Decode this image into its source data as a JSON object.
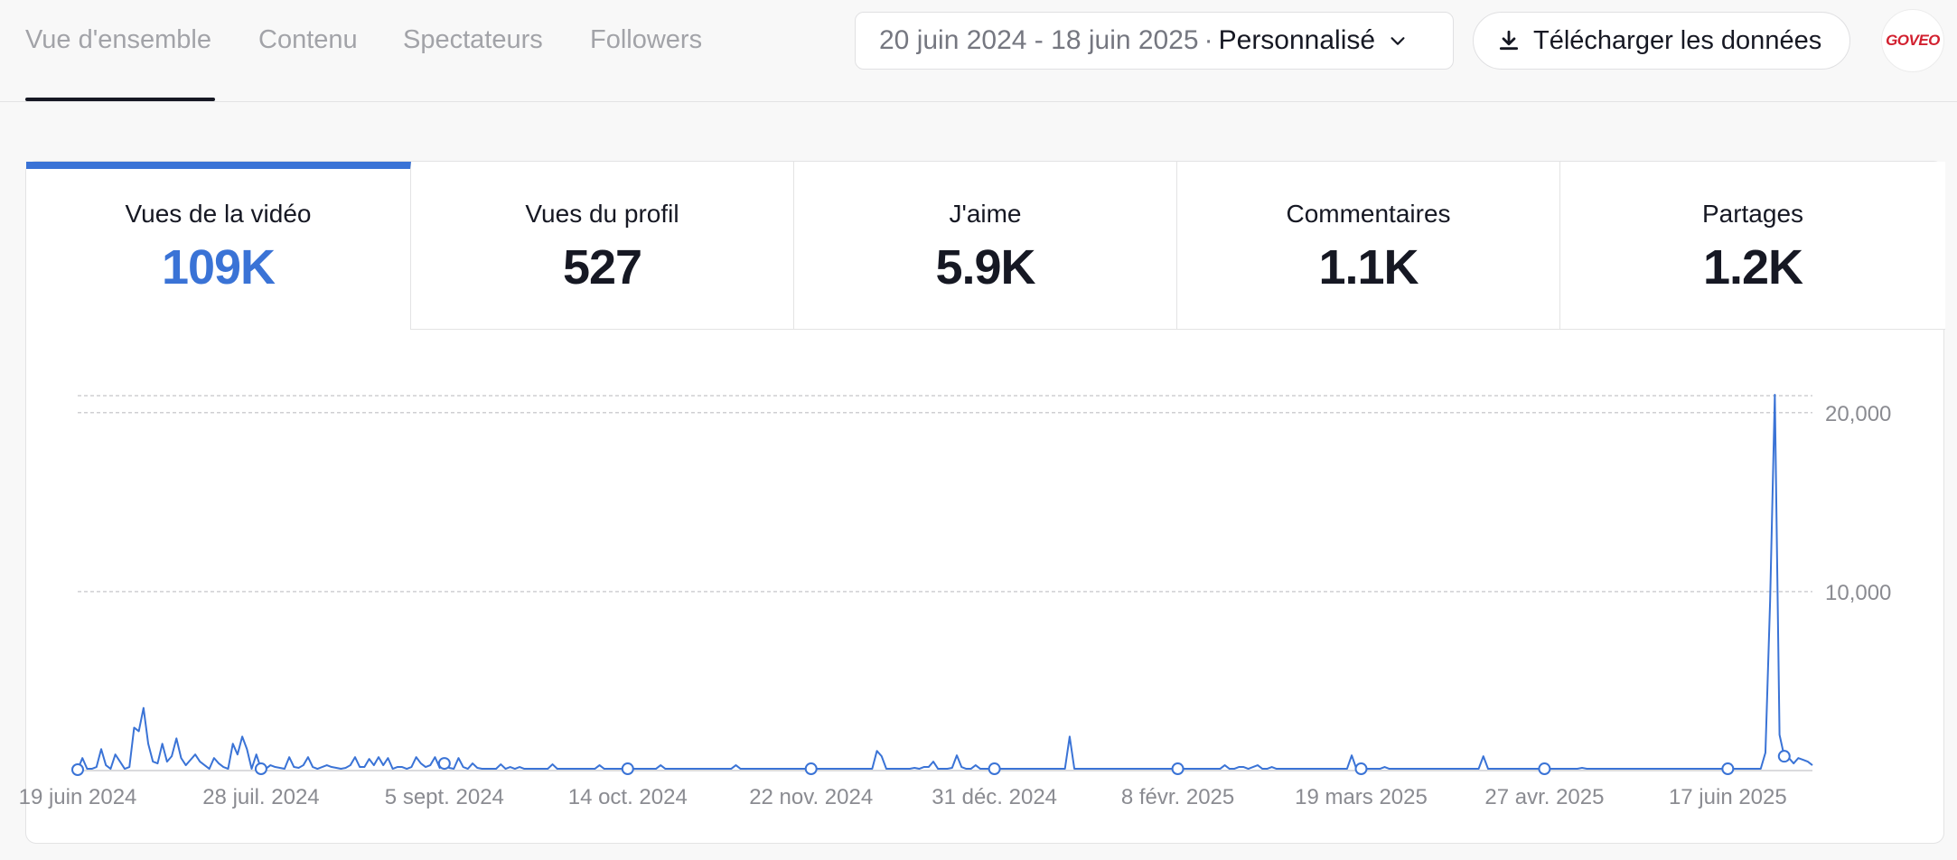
{
  "tabs": [
    {
      "label": "Vue d'ensemble",
      "active": true
    },
    {
      "label": "Contenu",
      "active": false
    },
    {
      "label": "Spectateurs",
      "active": false
    },
    {
      "label": "Followers",
      "active": false
    }
  ],
  "date_picker": {
    "range": "20 juin 2024 - 18 juin 2025",
    "separator": "·",
    "preset": "Personnalisé"
  },
  "download_label": "Télécharger les données",
  "account": {
    "logo_text": "GOVEO"
  },
  "metrics": [
    {
      "label": "Vues de la vidéo",
      "value": "109K",
      "active": true
    },
    {
      "label": "Vues du profil",
      "value": "527",
      "active": false
    },
    {
      "label": "J'aime",
      "value": "5.9K",
      "active": false
    },
    {
      "label": "Commentaires",
      "value": "1.1K",
      "active": false
    },
    {
      "label": "Partages",
      "value": "1.2K",
      "active": false
    }
  ],
  "colors": {
    "accent": "#3a73d6",
    "text": "#161823",
    "muted": "#a2a3a8"
  },
  "chart_data": {
    "type": "line",
    "x_tick_labels": [
      "19 juin 2024",
      "28 juil. 2024",
      "5 sept. 2024",
      "14 oct. 2024",
      "22 nov. 2024",
      "31 déc. 2024",
      "8 févr. 2025",
      "19 mars 2025",
      "27 avr. 2025",
      "17 juin 2025"
    ],
    "y_tick_labels": [
      "10,000",
      "20,000"
    ],
    "ylim": [
      0,
      21000
    ],
    "grid": true,
    "y_axis_side": "right",
    "series": [
      {
        "marker_x_indices": [
          0,
          39,
          78,
          117,
          156,
          195,
          234,
          273,
          312,
          351,
          363
        ],
        "values": [
          50,
          700,
          100,
          100,
          200,
          1200,
          300,
          100,
          900,
          500,
          100,
          200,
          2400,
          2200,
          3500,
          1500,
          500,
          400,
          1500,
          500,
          800,
          1800,
          700,
          300,
          600,
          900,
          500,
          300,
          100,
          700,
          400,
          200,
          100,
          1500,
          900,
          1900,
          1200,
          100,
          900,
          100,
          100,
          300,
          200,
          150,
          100,
          750,
          200,
          150,
          300,
          750,
          200,
          100,
          200,
          300,
          200,
          150,
          100,
          150,
          300,
          750,
          200,
          200,
          650,
          300,
          750,
          300,
          700,
          100,
          200,
          200,
          100,
          200,
          750,
          400,
          200,
          300,
          750,
          150,
          400,
          150,
          100,
          700,
          200,
          100,
          400,
          150,
          100,
          100,
          100,
          100,
          350,
          100,
          200,
          100,
          200,
          100,
          100,
          100,
          100,
          100,
          100,
          350,
          100,
          100,
          100,
          100,
          100,
          100,
          100,
          100,
          100,
          300,
          100,
          100,
          100,
          100,
          100,
          100,
          100,
          100,
          100,
          100,
          100,
          100,
          300,
          100,
          100,
          100,
          100,
          100,
          100,
          100,
          100,
          100,
          100,
          100,
          100,
          100,
          100,
          100,
          300,
          100,
          100,
          100,
          100,
          100,
          100,
          100,
          100,
          100,
          100,
          100,
          100,
          100,
          100,
          100,
          100,
          100,
          100,
          100,
          100,
          100,
          100,
          100,
          100,
          100,
          100,
          100,
          100,
          100,
          1100,
          800,
          100,
          100,
          100,
          100,
          100,
          100,
          150,
          100,
          200,
          200,
          500,
          100,
          100,
          100,
          150,
          850,
          200,
          100,
          100,
          300,
          100,
          100,
          100,
          100,
          100,
          100,
          100,
          100,
          100,
          100,
          100,
          100,
          100,
          100,
          100,
          100,
          100,
          100,
          100,
          1900,
          100,
          100,
          100,
          100,
          100,
          100,
          100,
          100,
          100,
          100,
          100,
          100,
          100,
          100,
          100,
          100,
          100,
          100,
          100,
          100,
          100,
          100,
          100,
          100,
          100,
          100,
          100,
          100,
          100,
          100,
          100,
          100,
          300,
          100,
          100,
          200,
          200,
          100,
          200,
          300,
          100,
          100,
          200,
          100,
          100,
          100,
          100,
          100,
          100,
          100,
          100,
          100,
          100,
          100,
          100,
          100,
          100,
          100,
          100,
          850,
          100,
          100,
          100,
          100,
          100,
          100,
          200,
          100,
          100,
          100,
          100,
          100,
          100,
          100,
          100,
          100,
          100,
          100,
          100,
          100,
          100,
          100,
          100,
          100,
          100,
          100,
          100,
          800,
          100,
          100,
          100,
          100,
          100,
          100,
          100,
          100,
          100,
          100,
          100,
          100,
          100,
          100,
          100,
          100,
          100,
          100,
          100,
          100,
          150,
          100,
          100,
          100,
          100,
          100,
          100,
          100,
          100,
          100,
          100,
          100,
          100,
          100,
          100,
          100,
          100,
          100,
          100,
          100,
          100,
          100,
          100,
          100,
          100,
          100,
          100,
          100,
          100,
          100,
          100,
          100,
          100,
          100,
          100,
          100,
          100,
          100,
          100,
          1000,
          9500,
          21000,
          2000,
          800,
          700,
          400,
          700,
          600,
          500,
          300
        ]
      }
    ]
  }
}
